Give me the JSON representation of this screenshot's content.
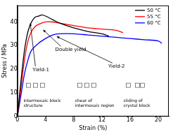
{
  "chart_data": {
    "type": "line",
    "x_label": "Strain (%)",
    "y_label": "Stress / MPa",
    "xlim": [
      0,
      21.5
    ],
    "xticks": [
      0,
      4,
      8,
      12,
      16,
      20
    ],
    "ylim": [
      0,
      47
    ],
    "yticks": [
      0,
      10,
      20,
      30,
      40
    ],
    "grid": false,
    "legend": "upper right",
    "series": [
      {
        "name": "50 °C",
        "color": "#000000",
        "x": [
          0,
          0.5,
          1,
          1.5,
          2,
          2.5,
          3,
          3.5,
          4,
          5,
          6,
          8,
          10,
          12,
          13
        ],
        "values": [
          0,
          15,
          28,
          36,
          40,
          42,
          42.5,
          43,
          42.5,
          41,
          39.5,
          37.5,
          36,
          35,
          34
        ]
      },
      {
        "name": "55 °C",
        "color": "#ff0000",
        "x": [
          0,
          0.5,
          1,
          1.5,
          2,
          2.5,
          3,
          4,
          5,
          6,
          8,
          10,
          12,
          14,
          15
        ],
        "values": [
          0,
          12,
          24,
          32,
          36,
          38,
          39,
          40,
          40,
          39.5,
          38.5,
          37.5,
          37,
          36.5,
          35.5
        ]
      },
      {
        "name": "60 °C",
        "color": "#0000ff",
        "x": [
          0,
          0.5,
          1,
          1.5,
          2,
          3,
          4,
          5,
          6,
          8,
          10,
          12,
          14,
          16,
          18,
          20,
          20.5
        ],
        "values": [
          0,
          9,
          18,
          24,
          28,
          31,
          33,
          34.5,
          35,
          35,
          34.5,
          34,
          33.5,
          33,
          32.5,
          32,
          31
        ]
      }
    ],
    "annotations": {
      "double_yield": "Double yield",
      "yield_1": "Yield-1",
      "yield_2": "Yield-2",
      "stages": [
        [
          "intermosaic block",
          "structure"
        ],
        [
          "shear of",
          "intermosaic region"
        ],
        [
          "sliding of",
          "crystal block"
        ]
      ]
    }
  }
}
